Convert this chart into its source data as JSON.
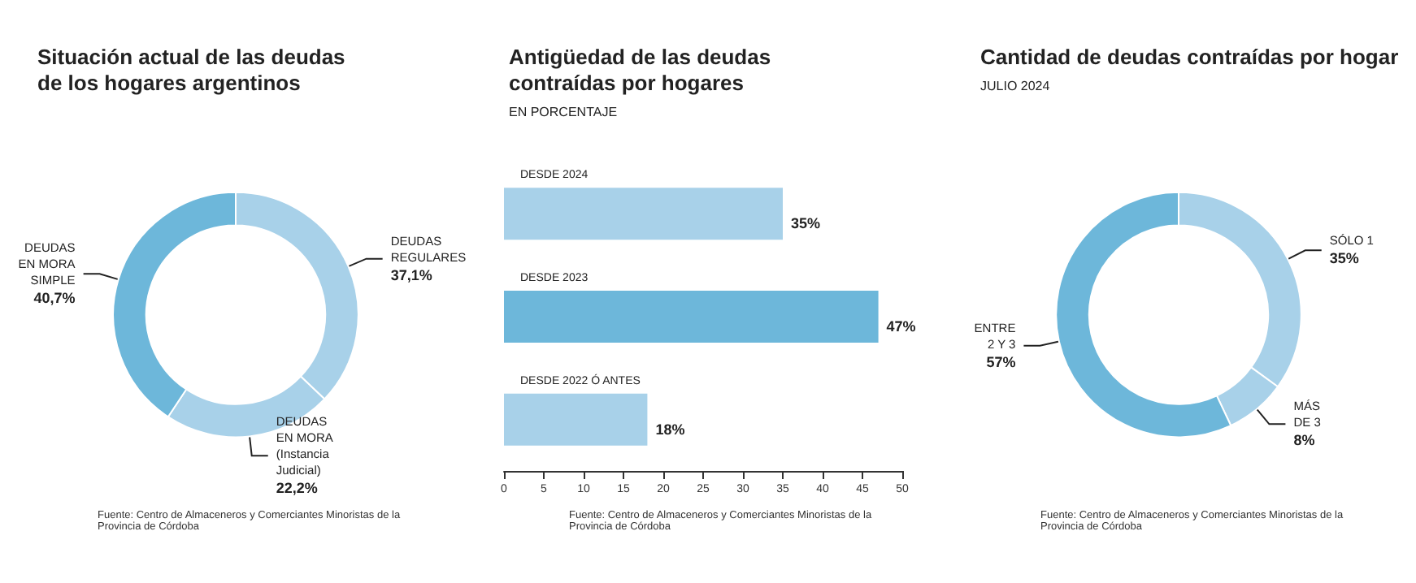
{
  "chart_data": [
    {
      "type": "donut",
      "title": "Situación actual de las deudas\nde los hogares argentinos",
      "categories": [
        "DEUDAS\nREGULARES",
        "DEUDAS\nEN MORA\n(Instancia\nJudicial)",
        "DEUDAS\nEN MORA\nSIMPLE"
      ],
      "values": [
        37.1,
        22.2,
        40.7
      ],
      "value_labels": [
        "37,1%",
        "22,2%",
        "40,7%"
      ],
      "colors": [
        "#a8d1e9",
        "#a8d1e9",
        "#6db7da"
      ],
      "legend": false,
      "annotations": [
        "Fuente: Centro de Almaceneros y Comerciantes Minoristas de la Provincia de Córdoba"
      ]
    },
    {
      "type": "bar",
      "orientation": "horizontal",
      "title": "Antigüedad de las deudas\ncontraídas por hogares",
      "subtitle": "EN PORCENTAJE",
      "categories": [
        "DESDE 2024",
        "DESDE 2023",
        "DESDE 2022 Ó ANTES"
      ],
      "values": [
        35,
        47,
        18
      ],
      "value_labels": [
        "35%",
        "47%",
        "18%"
      ],
      "colors": [
        "#a8d1e9",
        "#6db7da",
        "#a8d1e9"
      ],
      "xlim": [
        0,
        50
      ],
      "xticks": [
        0,
        5,
        10,
        15,
        20,
        25,
        30,
        35,
        40,
        45,
        50
      ],
      "grid": false,
      "legend": false,
      "annotations": [
        "Fuente: Centro de Almaceneros y Comerciantes Minoristas de la Provincia de Córdoba"
      ]
    },
    {
      "type": "donut",
      "title": "Cantidad de deudas contraídas por hogar",
      "subtitle": "JULIO 2024",
      "categories": [
        "SÓLO 1",
        "MÁS\nDE 3",
        "ENTRE\n2 Y 3"
      ],
      "values": [
        35,
        8,
        57
      ],
      "value_labels": [
        "35%",
        "8%",
        "57%"
      ],
      "colors": [
        "#a8d1e9",
        "#a8d1e9",
        "#6db7da"
      ],
      "legend": false,
      "annotations": [
        "Fuente: Centro de Almaceneros y Comerciantes Minoristas de la Provincia de Córdoba"
      ]
    }
  ]
}
